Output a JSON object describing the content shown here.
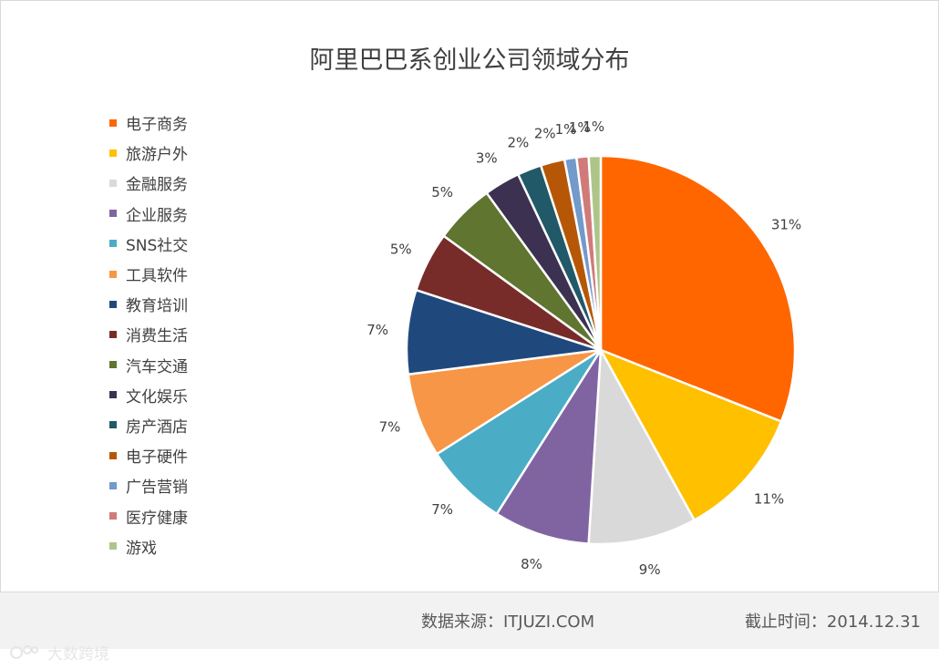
{
  "chart_data": {
    "type": "pie",
    "title": "阿里巴巴系创业公司领域分布",
    "categories": [
      "电子商务",
      "旅游户外",
      "金融服务",
      "企业服务",
      "SNS社交",
      "工具软件",
      "教育培训",
      "消费生活",
      "汽车交通",
      "文化娱乐",
      "房产酒店",
      "电子硬件",
      "广告营销",
      "医疗健康",
      "游戏"
    ],
    "values": [
      31,
      11,
      9,
      8,
      7,
      7,
      7,
      5,
      5,
      3,
      2,
      2,
      1,
      1,
      1
    ],
    "labels": [
      "31%",
      "11%",
      "9%",
      "8%",
      "7%",
      "7%",
      "7%",
      "5%",
      "5%",
      "3%",
      "2%",
      "2%",
      "1%",
      "1%",
      "1%"
    ],
    "colors": [
      "#ff6600",
      "#ffc000",
      "#d9d9d9",
      "#8064a2",
      "#4bacc6",
      "#f79646",
      "#1f497d",
      "#772c2a",
      "#5f7530",
      "#3c3151",
      "#215968",
      "#b65708",
      "#729aca",
      "#d07b7a",
      "#aec58a"
    ],
    "legend_position": "left"
  },
  "footer": {
    "source": "数据来源：ITJUZI.COM",
    "date": "截止时间：2014.12.31"
  },
  "watermark": {
    "text": "大数跨境"
  }
}
